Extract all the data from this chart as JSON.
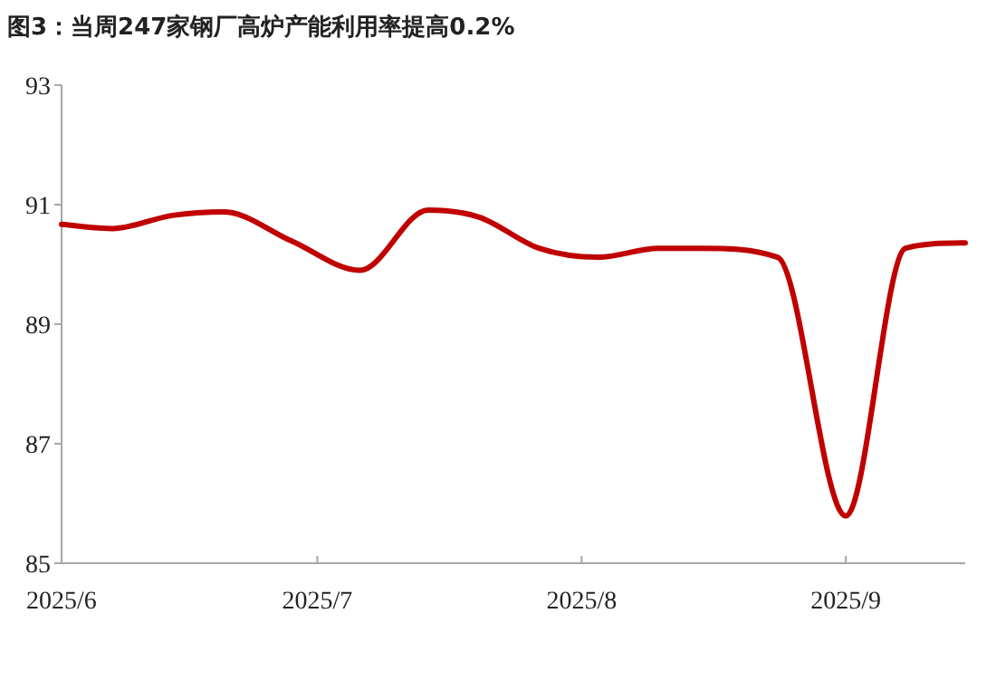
{
  "chart_data": {
    "type": "line",
    "title": "图3：当周247家钢厂高炉产能利用率提高0.2%",
    "x": [
      "2025-06-01",
      "2025-06-07",
      "2025-06-14",
      "2025-06-20",
      "2025-06-28",
      "2025-07-06",
      "2025-07-14",
      "2025-07-20",
      "2025-07-27",
      "2025-08-03",
      "2025-08-10",
      "2025-08-15",
      "2025-08-24",
      "2025-09-01",
      "2025-09-08",
      "2025-09-15"
    ],
    "series": [
      {
        "color": "#c00000",
        "values": [
          90.67,
          90.6,
          90.82,
          90.88,
          90.39,
          89.9,
          90.91,
          90.79,
          90.27,
          90.12,
          90.27,
          90.27,
          90.12,
          85.79,
          90.27,
          90.36
        ]
      }
    ],
    "xlim": [
      "2025-06-01",
      "2025-09-15"
    ],
    "xticks": [
      {
        "value": "2025-06-01",
        "label": "2025/6"
      },
      {
        "value": "2025-07-01",
        "label": "2025/7"
      },
      {
        "value": "2025-08-01",
        "label": "2025/8"
      },
      {
        "value": "2025-09-01",
        "label": "2025/9"
      }
    ],
    "ylim": [
      85,
      93
    ],
    "yticks": [
      85,
      87,
      89,
      91,
      93
    ]
  }
}
